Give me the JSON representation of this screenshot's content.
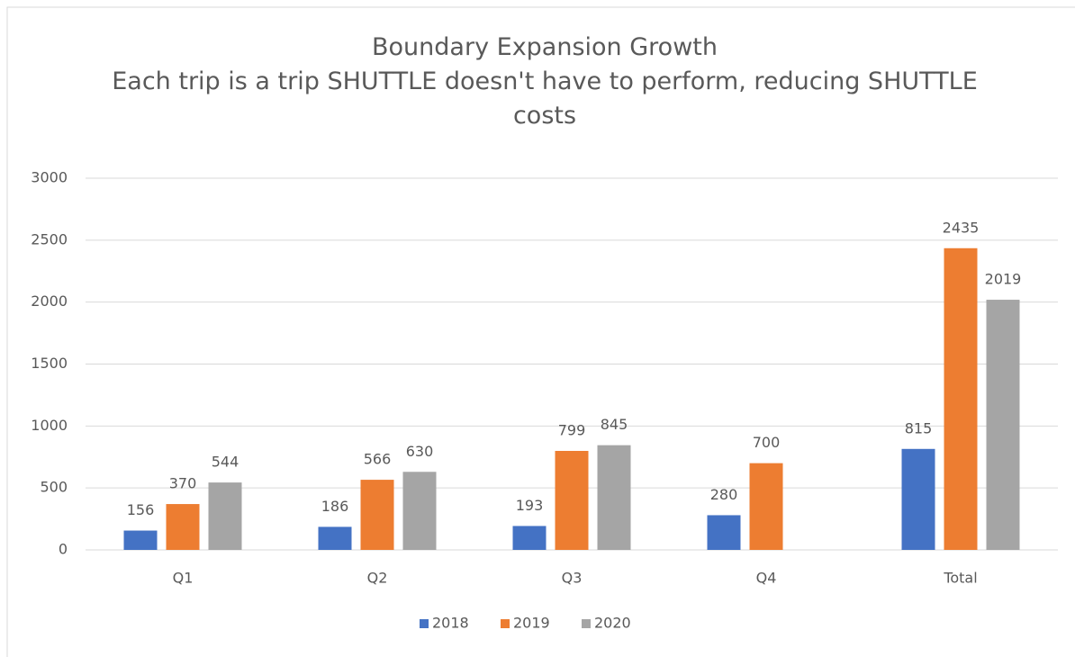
{
  "chart_data": {
    "type": "bar",
    "title": "Boundary Expansion Growth",
    "subtitle": "Each trip is a trip SHUTTLE doesn't have to perform, reducing SHUTTLE costs",
    "categories": [
      "Q1",
      "Q2",
      "Q3",
      "Q4",
      "Total"
    ],
    "series": [
      {
        "name": "2018",
        "color": "#4472c4",
        "values": [
          156,
          186,
          193,
          280,
          815
        ]
      },
      {
        "name": "2019",
        "color": "#ed7d31",
        "values": [
          370,
          566,
          799,
          700,
          2435
        ]
      },
      {
        "name": "2020",
        "color": "#a5a5a5",
        "values": [
          544,
          630,
          845,
          null,
          2019
        ]
      }
    ],
    "ylim": [
      0,
      3000
    ],
    "yticks": [
      0,
      500,
      1000,
      1500,
      2000,
      2500,
      3000
    ],
    "grid": true,
    "legend": "bottom"
  }
}
